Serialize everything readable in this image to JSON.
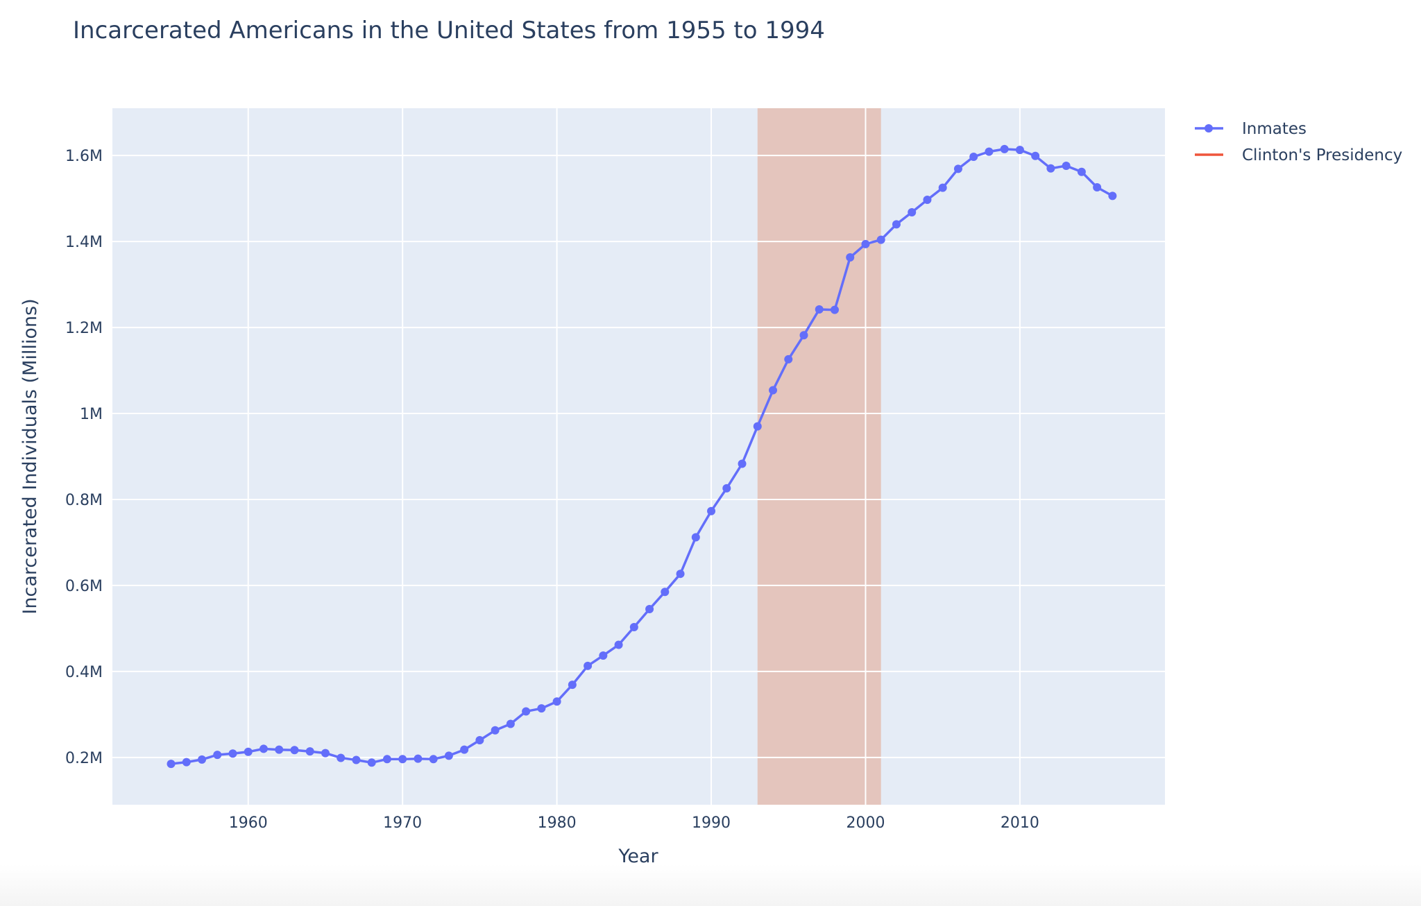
{
  "chart_data": {
    "type": "line",
    "title": "Incarcerated Americans in the United States from 1955 to 1994",
    "xlabel": "Year",
    "ylabel": "Incarcerated Individuals (Millions)",
    "xlim": [
      1951.2,
      2019.4
    ],
    "ylim": [
      90000,
      1710000
    ],
    "x_ticks": [
      1960,
      1970,
      1980,
      1990,
      2000,
      2010
    ],
    "x_tick_labels": [
      "1960",
      "1970",
      "1980",
      "1990",
      "2000",
      "2010"
    ],
    "y_ticks": [
      200000,
      400000,
      600000,
      800000,
      1000000,
      1200000,
      1400000,
      1600000
    ],
    "y_tick_labels": [
      "0.2M",
      "0.4M",
      "0.6M",
      "0.8M",
      "1M",
      "1.2M",
      "1.4M",
      "1.6M"
    ],
    "grid": true,
    "legend_position": "top-right",
    "series": [
      {
        "name": "Inmates",
        "color": "#636efa",
        "x": [
          1955,
          1956,
          1957,
          1958,
          1959,
          1960,
          1961,
          1962,
          1963,
          1964,
          1965,
          1966,
          1967,
          1968,
          1969,
          1970,
          1971,
          1972,
          1973,
          1974,
          1975,
          1976,
          1977,
          1978,
          1979,
          1980,
          1981,
          1982,
          1983,
          1984,
          1985,
          1986,
          1987,
          1988,
          1989,
          1990,
          1991,
          1992,
          1993,
          1994,
          1995,
          1996,
          1997,
          1998,
          1999,
          2000,
          2001,
          2002,
          2003,
          2004,
          2005,
          2006,
          2007,
          2008,
          2009,
          2010,
          2011,
          2012,
          2013,
          2014,
          2015,
          2016
        ],
        "y": [
          185000,
          189000,
          195000,
          206000,
          209000,
          213000,
          220000,
          218000,
          217000,
          214000,
          210000,
          199000,
          194000,
          188000,
          196000,
          196000,
          197000,
          196000,
          204000,
          218000,
          240000,
          263000,
          278000,
          307000,
          314000,
          330000,
          369000,
          413000,
          437000,
          462000,
          503000,
          545000,
          585000,
          627000,
          712000,
          773000,
          826000,
          883000,
          970000,
          1054000,
          1126000,
          1182000,
          1242000,
          1241000,
          1363000,
          1394000,
          1404000,
          1440000,
          1468000,
          1497000,
          1525000,
          1569000,
          1597000,
          1609000,
          1615000,
          1613000,
          1599000,
          1570000,
          1576000,
          1562000,
          1526000,
          1506000
        ]
      },
      {
        "name": "Clinton's Presidency",
        "color": "#ef553b",
        "type": "shaded-range",
        "x_range": [
          1993,
          2001
        ],
        "fill_color": "#e49e83",
        "fill_opacity": 0.5
      }
    ]
  }
}
